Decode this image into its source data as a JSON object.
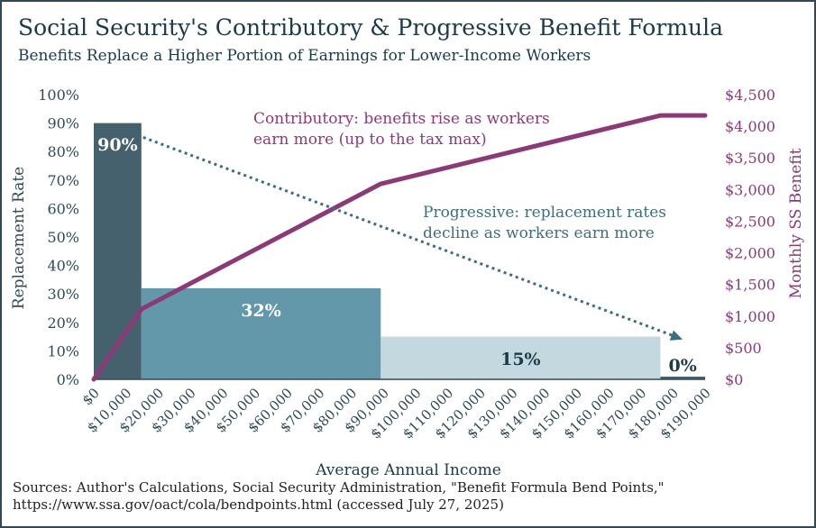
{
  "title": "Social Security's Contributory & Progressive Benefit Formula",
  "subtitle": "Benefits Replace a Higher Portion of Earnings for Lower-Income Workers",
  "sources": {
    "line1": "Sources: Author's Calculations, Social Security Administration, \"Benefit Formula Bend Points,\"",
    "line2": "https://www.ssa.gov/oact/cola/bendpoints.html (accessed July 27, 2025)"
  },
  "colors": {
    "bar_90": "#45616e",
    "bar_32": "#6298aa",
    "bar_15": "#c4d8e0",
    "bar_0": "#45616e",
    "benefit_line": "#8b3a78",
    "trend_arrow": "#3e6e7d",
    "left_axis_text": "#2f4a56",
    "right_axis_text": "#8b3a78"
  },
  "chart_data": {
    "type": "bar+line",
    "title": "Social Security's Contributory & Progressive Benefit Formula",
    "subtitle": "Benefits Replace a Higher Portion of Earnings for Lower-Income Workers",
    "xlabel": "Average Annual Income",
    "ylabel": "Replacement Rate",
    "y2label": "Monthly SS Benefit",
    "x_range": [
      0,
      190000
    ],
    "x_ticks": [
      "$0",
      "$10,000",
      "$20,000",
      "$30,000",
      "$40,000",
      "$50,000",
      "$60,000",
      "$70,000",
      "$80,000",
      "$90,000",
      "$100,000",
      "$110,000",
      "$120,000",
      "$130,000",
      "$140,000",
      "$150,000",
      "$160,000",
      "$170,000",
      "$180,000",
      "$190,000"
    ],
    "ylim": [
      0,
      1.0
    ],
    "y_ticks": [
      "0%",
      "10%",
      "20%",
      "30%",
      "40%",
      "50%",
      "60%",
      "70%",
      "80%",
      "90%",
      "100%"
    ],
    "y2lim": [
      0,
      4500
    ],
    "y2_ticks": [
      "$0",
      "$500",
      "$1,000",
      "$1,500",
      "$2,000",
      "$2,500",
      "$3,000",
      "$3,500",
      "$4,000",
      "$4,500"
    ],
    "grid": false,
    "bars": [
      {
        "name": "tier-90",
        "x_start": 0,
        "x_end": 14800,
        "value": 0.9,
        "label": "90%"
      },
      {
        "name": "tier-32",
        "x_start": 14800,
        "x_end": 89200,
        "value": 0.32,
        "label": "32%"
      },
      {
        "name": "tier-15",
        "x_start": 89200,
        "x_end": 176100,
        "value": 0.15,
        "label": "15%"
      },
      {
        "name": "tier-0",
        "x_start": 176100,
        "x_end": 190000,
        "value": 0.0,
        "label": "0%"
      }
    ],
    "series": [
      {
        "name": "Monthly SS Benefit",
        "axis": "right",
        "x": [
          0,
          14800,
          89200,
          176100,
          190000
        ],
        "y": [
          0,
          1110,
          3090,
          4170,
          4170
        ]
      }
    ],
    "trend_arrow": {
      "from": [
        14800,
        0.85
      ],
      "to": [
        183000,
        0.14
      ]
    },
    "annotations": [
      {
        "name": "contributory",
        "lines": [
          "Contributory: benefits rise as workers",
          "earn more (up to the tax max)"
        ],
        "color": "benefit_line"
      },
      {
        "name": "progressive",
        "lines": [
          "Progressive: replacement rates",
          "decline as workers earn more"
        ],
        "color": "trend_arrow"
      }
    ]
  }
}
